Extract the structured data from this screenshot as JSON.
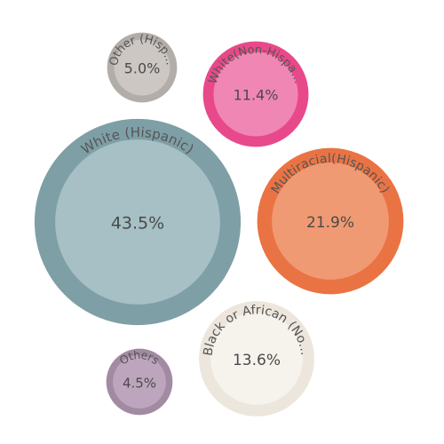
{
  "chart_data": {
    "type": "bubble",
    "title": "",
    "unit": "%",
    "series": [
      {
        "name": "White (Hispanic)",
        "label": "White (Hispanic)",
        "value": 43.5,
        "value_label": "43.5%",
        "color_outer": "#7e9fa6",
        "color_inner": "#a6c0c6"
      },
      {
        "name": "Multiracial(Hispanic)",
        "label": "Multiracial(Hispanic)",
        "value": 21.9,
        "value_label": "21.9%",
        "color_outer": "#ea7344",
        "color_inner": "#f09a73"
      },
      {
        "name": "Black or African (No...",
        "label": "Black or African (No...",
        "value": 13.6,
        "value_label": "13.6%",
        "color_outer": "#ece6dd",
        "color_inner": "#f6f2ec"
      },
      {
        "name": "White(Non-Hispa...",
        "label": "White(Non-Hispa...",
        "value": 11.4,
        "value_label": "11.4%",
        "color_outer": "#e8498a",
        "color_inner": "#f086b4"
      },
      {
        "name": "Other (Hisp...",
        "label": "Other (Hisp...",
        "value": 5.0,
        "value_label": "5.0%",
        "color_outer": "#b3ada9",
        "color_inner": "#ccc7c3"
      },
      {
        "name": "Others",
        "label": "Others",
        "value": 4.5,
        "value_label": "4.5%",
        "color_outer": "#a38aa3",
        "color_inner": "#bda6bd"
      }
    ]
  }
}
